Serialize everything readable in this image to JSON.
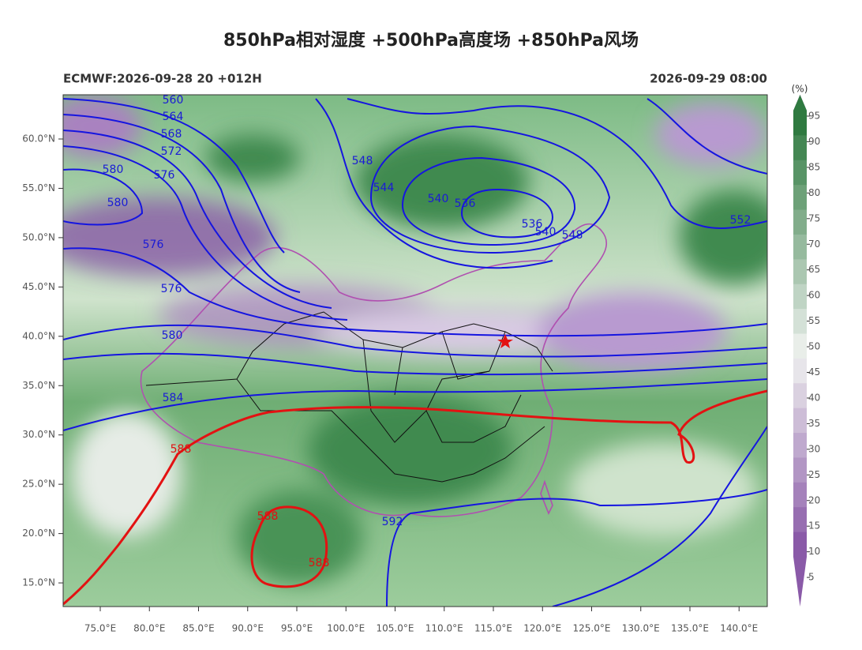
{
  "header": {
    "title": "850hPa相对湿度 +500hPa高度场 +850hPa风场",
    "model_run": "ECMWF:2026-09-28 20 +012H",
    "valid_time": "2026-09-29 08:00"
  },
  "map": {
    "lat_ticks": [
      {
        "value": 60,
        "label": "60.0°N"
      },
      {
        "value": 55,
        "label": "55.0°N"
      },
      {
        "value": 50,
        "label": "50.0°N"
      },
      {
        "value": 45,
        "label": "45.0°N"
      },
      {
        "value": 40,
        "label": "40.0°N"
      },
      {
        "value": 35,
        "label": "35.0°N"
      },
      {
        "value": 30,
        "label": "30.0°N"
      },
      {
        "value": 25,
        "label": "25.0°N"
      },
      {
        "value": 20,
        "label": "20.0°N"
      },
      {
        "value": 15,
        "label": "15.0°N"
      }
    ],
    "lon_ticks": [
      {
        "value": 75,
        "label": "75.0°E"
      },
      {
        "value": 80,
        "label": "80.0°E"
      },
      {
        "value": 85,
        "label": "85.0°E"
      },
      {
        "value": 90,
        "label": "90.0°E"
      },
      {
        "value": 95,
        "label": "95.0°E"
      },
      {
        "value": 100,
        "label": "100.0°E"
      },
      {
        "value": 105,
        "label": "105.0°E"
      },
      {
        "value": 110,
        "label": "110.0°E"
      },
      {
        "value": 115,
        "label": "115.0°E"
      },
      {
        "value": 120,
        "label": "120.0°E"
      },
      {
        "value": 125,
        "label": "125.0°E"
      },
      {
        "value": 130,
        "label": "130.0°E"
      },
      {
        "value": 135,
        "label": "135.0°E"
      },
      {
        "value": 140,
        "label": "140.0°E"
      }
    ],
    "height_labels": [
      "560",
      "564",
      "568",
      "572",
      "580",
      "576",
      "548",
      "544",
      "540",
      "536",
      "580",
      "576",
      "536",
      "540",
      "548",
      "552",
      "576",
      "580",
      "584",
      "592"
    ],
    "ridge_labels": [
      "588",
      "588",
      "588"
    ]
  },
  "colorbar": {
    "unit": "(%)",
    "ticks": [
      95,
      90,
      85,
      80,
      75,
      70,
      65,
      60,
      55,
      50,
      45,
      40,
      35,
      30,
      25,
      20,
      15,
      10,
      5
    ]
  }
}
